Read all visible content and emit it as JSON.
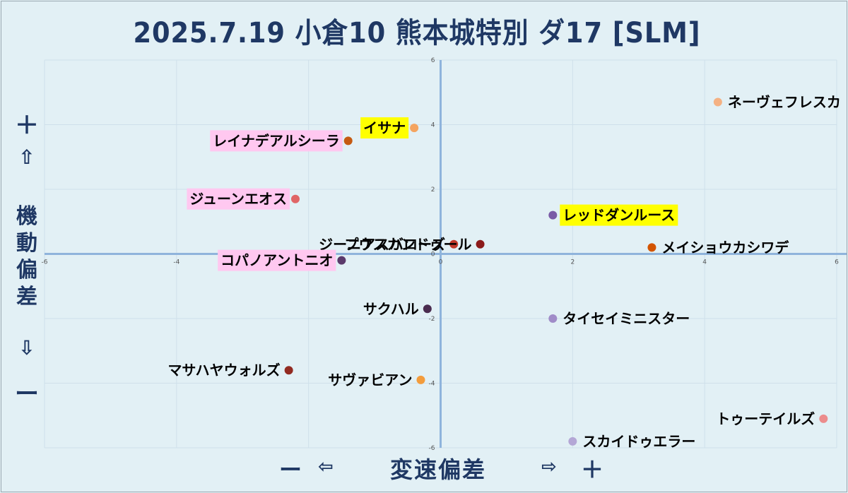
{
  "title": "2025.7.19 小倉10 熊本城特別 ダ17 [SLM]",
  "y_axis": {
    "plus": "＋",
    "up_arrow": "⇧",
    "label_chars": [
      "機",
      "動",
      "偏",
      "差"
    ],
    "down_arrow": "⇩",
    "minus": "ー"
  },
  "x_axis": {
    "minus": "ー",
    "left_arrow": "⇦",
    "label": "変速偏差",
    "right_arrow": "⇨",
    "plus": "＋"
  },
  "chart_data": {
    "type": "scatter",
    "title": "2025.7.19 小倉10 熊本城特別 ダ17 [SLM]",
    "xlabel": "変速偏差",
    "ylabel": "機動偏差",
    "xlim": [
      -6,
      6
    ],
    "ylim": [
      -6,
      6
    ],
    "xticks": [
      "-6",
      "-4",
      "-2",
      "0",
      "2",
      "4",
      "6"
    ],
    "yticks": [
      "6",
      "4",
      "2",
      "0",
      "-2",
      "-4",
      "-6"
    ],
    "grid": true,
    "points": [
      {
        "name": "ネーヴェフレスカ",
        "x": 4.2,
        "y": 4.7,
        "color": "#f4b183",
        "highlight": ""
      },
      {
        "name": "イサナ",
        "x": -0.4,
        "y": 3.9,
        "color": "#f4a460",
        "highlight": "#ffff00"
      },
      {
        "name": "レイナデアルシーラ",
        "x": -1.4,
        "y": 3.5,
        "color": "#c55a11",
        "highlight": "#ffc8f0"
      },
      {
        "name": "ジューンエオス",
        "x": -2.2,
        "y": 1.7,
        "color": "#e06666",
        "highlight": "#ffc8f0"
      },
      {
        "name": "レッドダンルース",
        "x": 1.7,
        "y": 1.2,
        "color": "#7a5aa6",
        "highlight": "#ffff00"
      },
      {
        "name": "ジーニアスバローズ",
        "x": 0.2,
        "y": 0.3,
        "color": "#c0392b",
        "highlight": ""
      },
      {
        "name": "プウスカンドゥール",
        "x": 0.6,
        "y": 0.3,
        "color": "#8b1a1a",
        "highlight": ""
      },
      {
        "name": "メイショウカシワデ",
        "x": 3.2,
        "y": 0.2,
        "color": "#d35400",
        "highlight": ""
      },
      {
        "name": "コパノアントニオ",
        "x": -1.5,
        "y": -0.2,
        "color": "#5b3a6b",
        "highlight": "#ffc8f0"
      },
      {
        "name": "サクハル",
        "x": -0.2,
        "y": -1.7,
        "color": "#4a2c4f",
        "highlight": ""
      },
      {
        "name": "タイセイミニスター",
        "x": 1.7,
        "y": -2.0,
        "color": "#a08cc8",
        "highlight": ""
      },
      {
        "name": "マサハヤウォルズ",
        "x": -2.3,
        "y": -3.6,
        "color": "#922b21",
        "highlight": ""
      },
      {
        "name": "サヴァビアン",
        "x": -0.3,
        "y": -3.9,
        "color": "#f39c3c",
        "highlight": ""
      },
      {
        "name": "トゥーテイルズ",
        "x": 5.8,
        "y": -5.1,
        "color": "#ec8c8c",
        "highlight": ""
      },
      {
        "name": "スカイドゥエラー",
        "x": 2.0,
        "y": -5.8,
        "color": "#b4a7d6",
        "highlight": ""
      }
    ]
  }
}
